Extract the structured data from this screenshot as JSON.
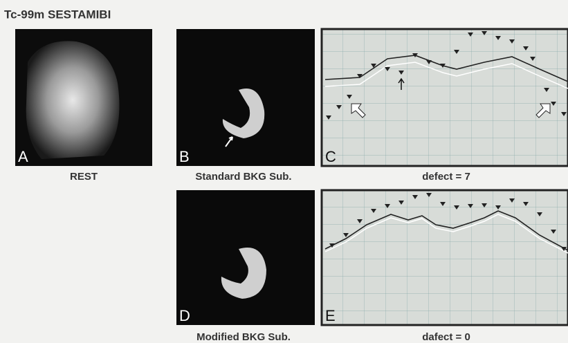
{
  "title": "Tc-99m SESTAMIBI",
  "panels": [
    {
      "letter": "A",
      "caption": "REST"
    },
    {
      "letter": "B",
      "caption": "Standard BKG Sub."
    },
    {
      "letter": "C",
      "caption": "defect = 7"
    },
    {
      "letter": "D",
      "caption": "Modified BKG Sub."
    },
    {
      "letter": "E",
      "caption": "dafect = 0"
    }
  ]
}
